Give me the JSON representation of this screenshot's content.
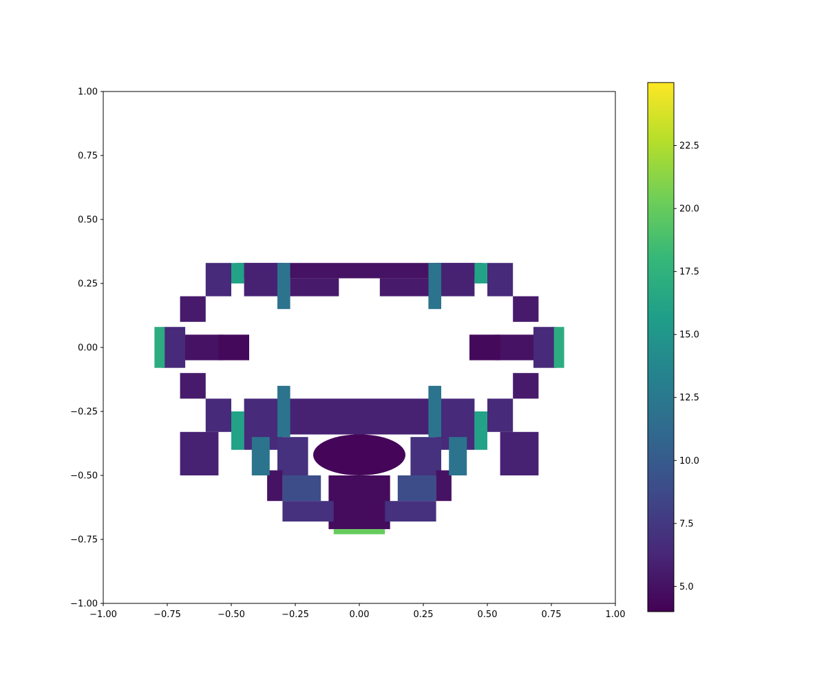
{
  "chart_data": {
    "type": "heatmap",
    "title": "",
    "xlabel": "",
    "ylabel": "",
    "xlim": [
      -1.0,
      1.0
    ],
    "ylim": [
      -1.0,
      1.0
    ],
    "x_ticks": [
      -1.0,
      -0.75,
      -0.5,
      -0.25,
      0.0,
      0.25,
      0.5,
      0.75,
      1.0
    ],
    "x_tick_labels": [
      "−1.00",
      "−0.75",
      "−0.50",
      "−0.25",
      "0.00",
      "0.25",
      "0.50",
      "0.75",
      "1.00"
    ],
    "y_ticks": [
      1.0,
      0.75,
      0.5,
      0.25,
      0.0,
      -0.25,
      -0.5,
      -0.75,
      -1.0
    ],
    "y_tick_labels": [
      "1.00",
      "0.75",
      "0.50",
      "0.25",
      "0.00",
      "−0.25",
      "−0.50",
      "−0.75",
      "−1.00"
    ],
    "colormap": "viridis",
    "colormap_stops": [
      "#440154",
      "#482878",
      "#3e4989",
      "#31688e",
      "#26828e",
      "#1f9e89",
      "#35b779",
      "#6ece58",
      "#b5de2b",
      "#fde725"
    ],
    "colorbar": {
      "range": [
        4.0,
        25.0
      ],
      "ticks": [
        5.0,
        7.5,
        10.0,
        12.5,
        15.0,
        17.5,
        20.0,
        22.5
      ],
      "tick_labels": [
        "5.0",
        "7.5",
        "10.0",
        "12.5",
        "15.0",
        "17.5",
        "20.0",
        "22.5"
      ]
    },
    "grid": false,
    "legend": "none",
    "data_extent": {
      "x": [
        -0.8,
        0.8
      ],
      "y": [
        -0.73,
        0.33
      ]
    },
    "regions": [
      {
        "shape": "rect",
        "x": [
          -0.48,
          0.48
        ],
        "y": [
          0.27,
          0.33
        ],
        "value": 5.0,
        "symmetric": false
      },
      {
        "shape": "ellipse",
        "cx": 0.0,
        "cy": -0.42,
        "rx": 0.18,
        "ry": 0.08,
        "value": 4.3,
        "symmetric": false
      },
      {
        "shape": "rect",
        "x": [
          -0.12,
          0.12
        ],
        "y": [
          -0.71,
          -0.5
        ],
        "value": 4.6,
        "symmetric": false
      },
      {
        "shape": "rect",
        "x": [
          -0.1,
          0.1
        ],
        "y": [
          -0.73,
          -0.71
        ],
        "value": 20.0,
        "symmetric": false
      },
      {
        "shape": "rect",
        "x": [
          -0.3,
          0.3
        ],
        "y": [
          -0.34,
          -0.2
        ],
        "value": 6.0,
        "symmetric": false
      },
      {
        "shape": "rect",
        "x": [
          0.53,
          0.68
        ],
        "y": [
          -0.05,
          0.05
        ],
        "value": 5.0,
        "symmetric": true
      },
      {
        "shape": "rect",
        "x": [
          0.68,
          0.77
        ],
        "y": [
          -0.08,
          0.08
        ],
        "value": 6.5,
        "symmetric": true
      },
      {
        "shape": "rect",
        "x": [
          0.76,
          0.8
        ],
        "y": [
          -0.08,
          0.08
        ],
        "value": 17.0,
        "symmetric": true
      },
      {
        "shape": "rect",
        "x": [
          0.43,
          0.55
        ],
        "y": [
          -0.05,
          0.05
        ],
        "value": 4.5,
        "symmetric": true
      },
      {
        "shape": "rect",
        "x": [
          0.5,
          0.6
        ],
        "y": [
          0.2,
          0.33
        ],
        "value": 6.5,
        "symmetric": true
      },
      {
        "shape": "rect",
        "x": [
          0.5,
          0.6
        ],
        "y": [
          -0.33,
          -0.2
        ],
        "value": 6.5,
        "symmetric": true
      },
      {
        "shape": "rect",
        "x": [
          0.55,
          0.7
        ],
        "y": [
          -0.5,
          -0.33
        ],
        "value": 6.0,
        "symmetric": true
      },
      {
        "shape": "rect",
        "x": [
          0.3,
          0.45
        ],
        "y": [
          0.2,
          0.33
        ],
        "value": 6.0,
        "symmetric": true
      },
      {
        "shape": "rect",
        "x": [
          0.3,
          0.45
        ],
        "y": [
          -0.4,
          -0.2
        ],
        "value": 6.5,
        "symmetric": true
      },
      {
        "shape": "rect",
        "x": [
          0.2,
          0.32
        ],
        "y": [
          -0.5,
          -0.35
        ],
        "value": 7.0,
        "symmetric": true
      },
      {
        "shape": "rect",
        "x": [
          0.15,
          0.3
        ],
        "y": [
          -0.6,
          -0.5
        ],
        "value": 9.0,
        "symmetric": true
      },
      {
        "shape": "rect",
        "x": [
          0.3,
          0.36
        ],
        "y": [
          -0.6,
          -0.48
        ],
        "value": 5.0,
        "symmetric": true
      },
      {
        "shape": "rect",
        "x": [
          0.35,
          0.42
        ],
        "y": [
          -0.5,
          -0.35
        ],
        "value": 12.0,
        "symmetric": true
      },
      {
        "shape": "rect",
        "x": [
          0.27,
          0.32
        ],
        "y": [
          0.15,
          0.33
        ],
        "value": 12.0,
        "symmetric": true
      },
      {
        "shape": "rect",
        "x": [
          0.27,
          0.32
        ],
        "y": [
          -0.35,
          -0.15
        ],
        "value": 12.0,
        "symmetric": true
      },
      {
        "shape": "rect",
        "x": [
          0.08,
          0.27
        ],
        "y": [
          0.2,
          0.27
        ],
        "value": 5.5,
        "symmetric": true
      },
      {
        "shape": "rect",
        "x": [
          0.45,
          0.5
        ],
        "y": [
          0.25,
          0.33
        ],
        "value": 16.0,
        "symmetric": true
      },
      {
        "shape": "rect",
        "x": [
          0.45,
          0.5
        ],
        "y": [
          -0.4,
          -0.25
        ],
        "value": 16.0,
        "symmetric": true
      },
      {
        "shape": "rect",
        "x": [
          0.1,
          0.3
        ],
        "y": [
          -0.68,
          -0.6
        ],
        "value": 7.0,
        "symmetric": true
      },
      {
        "shape": "rect",
        "x": [
          0.6,
          0.7
        ],
        "y": [
          0.1,
          0.2
        ],
        "value": 5.5,
        "symmetric": true
      },
      {
        "shape": "rect",
        "x": [
          0.6,
          0.7
        ],
        "y": [
          -0.2,
          -0.1
        ],
        "value": 5.5,
        "symmetric": true
      }
    ]
  }
}
